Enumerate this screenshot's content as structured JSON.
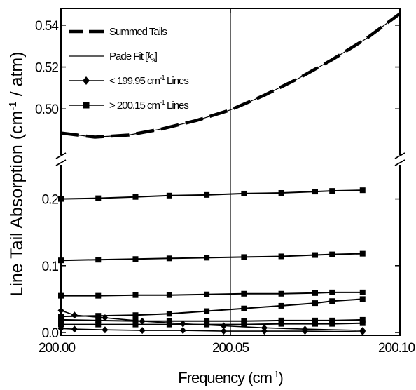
{
  "chart_data": {
    "type": "line",
    "title": "",
    "xlabel": "Frequency (cm",
    "xlabel_sup": "-1",
    "xlabel_end": ")",
    "ylabel": "Line Tail Absorption (cm",
    "ylabel_sup": "-1",
    "ylabel_end": " / atm)",
    "xlim": [
      200.0,
      200.1
    ],
    "broken_y_axis": true,
    "y_segments": [
      {
        "name": "lower",
        "range": [
          0.0,
          0.23
        ],
        "ticks": [
          0.0,
          0.1,
          0.2
        ],
        "tick_labels": [
          "0.0",
          "0.1",
          "0.2"
        ]
      },
      {
        "name": "upper",
        "range": [
          0.485,
          0.548
        ],
        "ticks": [
          0.5,
          0.52,
          0.54
        ],
        "tick_labels": [
          "0.50",
          "0.52",
          "0.54"
        ]
      }
    ],
    "x_ticks": [
      200.0,
      200.05,
      200.1
    ],
    "x_tick_labels": [
      "200.00",
      "200.05",
      "200.10"
    ],
    "vertical_reference_line": 200.05,
    "legend_position": "top-left",
    "legend": [
      {
        "label": "Summed Tails",
        "style": "thick-dashed"
      },
      {
        "label": "Pade Fit [",
        "label_italic": "k",
        "label_sub": "s",
        "label_end": "]",
        "style": "thin-line"
      },
      {
        "label": "< 199.95 cm",
        "label_sup": "-1",
        "label_end": " Lines",
        "style": "line-diamond"
      },
      {
        "label": "> 200.15 cm",
        "label_sup": "-1",
        "label_end": " Lines",
        "style": "line-square"
      }
    ],
    "curves": [
      {
        "name": "Summed Tails",
        "x": [
          200.0,
          200.01,
          200.02,
          200.03,
          200.04,
          200.05,
          200.06,
          200.07,
          200.08,
          200.09,
          200.1
        ],
        "y": [
          0.4885,
          0.4865,
          0.4875,
          0.4905,
          0.4945,
          0.4995,
          0.5065,
          0.5145,
          0.5235,
          0.5335,
          0.5455
        ]
      },
      {
        "name": "Pade Fit",
        "x": [
          200.0,
          200.01,
          200.02,
          200.03,
          200.04,
          200.05,
          200.06,
          200.07,
          200.08,
          200.09,
          200.1
        ],
        "y": [
          0.4885,
          0.4865,
          0.4875,
          0.4905,
          0.4945,
          0.4995,
          0.5065,
          0.5145,
          0.5235,
          0.5335,
          0.5455
        ]
      }
    ],
    "series_high": [
      {
        "x": [
          200.0,
          200.011,
          200.022,
          200.032,
          200.043,
          200.054,
          200.065,
          200.075,
          200.08,
          200.089
        ],
        "y": [
          0.2,
          0.201,
          0.203,
          0.205,
          0.206,
          0.208,
          0.209,
          0.211,
          0.212,
          0.213
        ]
      },
      {
        "x": [
          200.0,
          200.011,
          200.022,
          200.032,
          200.043,
          200.054,
          200.065,
          200.075,
          200.08,
          200.089
        ],
        "y": [
          0.108,
          0.109,
          0.11,
          0.111,
          0.112,
          0.113,
          0.114,
          0.116,
          0.117,
          0.118
        ]
      },
      {
        "x": [
          200.0,
          200.011,
          200.022,
          200.032,
          200.043,
          200.054,
          200.065,
          200.075,
          200.08,
          200.089
        ],
        "y": [
          0.055,
          0.055,
          0.056,
          0.056,
          0.057,
          0.058,
          0.058,
          0.059,
          0.06,
          0.06
        ]
      },
      {
        "x": [
          200.0,
          200.011,
          200.022,
          200.032,
          200.043,
          200.054,
          200.065,
          200.075,
          200.08,
          200.089
        ],
        "y": [
          0.024,
          0.025,
          0.026,
          0.028,
          0.032,
          0.036,
          0.04,
          0.044,
          0.047,
          0.05
        ]
      },
      {
        "x": [
          200.0,
          200.011,
          200.022,
          200.032,
          200.043,
          200.054,
          200.065,
          200.075,
          200.08,
          200.089
        ],
        "y": [
          0.019,
          0.018,
          0.017,
          0.017,
          0.017,
          0.017,
          0.018,
          0.018,
          0.018,
          0.019
        ]
      },
      {
        "x": [
          200.0,
          200.011,
          200.022,
          200.032,
          200.043,
          200.054,
          200.065,
          200.075,
          200.08,
          200.089
        ],
        "y": [
          0.012,
          0.012,
          0.012,
          0.012,
          0.012,
          0.012,
          0.013,
          0.013,
          0.013,
          0.014
        ]
      }
    ],
    "series_low": [
      {
        "x": [
          200.0,
          200.004,
          200.013,
          200.024,
          200.036,
          200.048,
          200.06,
          200.072,
          200.089
        ],
        "y": [
          0.033,
          0.026,
          0.022,
          0.017,
          0.013,
          0.01,
          0.007,
          0.005,
          0.003
        ]
      },
      {
        "x": [
          200.0,
          200.004,
          200.013,
          200.024,
          200.036,
          200.048,
          200.06,
          200.072,
          200.089
        ],
        "y": [
          0.006,
          0.005,
          0.004,
          0.003,
          0.003,
          0.002,
          0.002,
          0.002,
          0.001
        ]
      }
    ]
  }
}
